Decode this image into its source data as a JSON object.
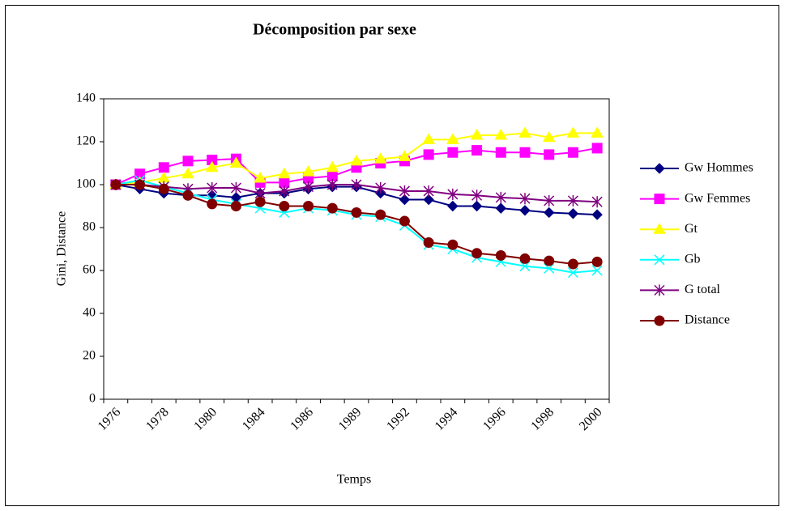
{
  "chart_data": {
    "type": "line",
    "title": "Décomposition par sexe",
    "x_label": "Temps",
    "y_label": "Gini, Distance",
    "categories": [
      "1976",
      null,
      "1978",
      null,
      "1980",
      null,
      "1984",
      null,
      "1986",
      null,
      "1989",
      null,
      "1992",
      null,
      "1994",
      null,
      "1996",
      null,
      "1998",
      null,
      "2000"
    ],
    "ylim": [
      0,
      140
    ],
    "yticks": [
      0,
      20,
      40,
      60,
      80,
      100,
      120,
      140
    ],
    "legend": "right",
    "series": [
      {
        "name": "Gw Hommes",
        "color": "#000080",
        "marker": "diamond",
        "values": [
          100,
          98,
          96,
          95,
          95,
          94,
          96,
          96,
          98,
          99,
          99,
          96,
          93,
          93,
          90,
          90,
          89,
          88,
          87,
          86.5,
          86
        ]
      },
      {
        "name": "Gw Femmes",
        "color": "#ff00ff",
        "marker": "square",
        "values": [
          100,
          105,
          108,
          111,
          111.5,
          112,
          101,
          101,
          103,
          104,
          108,
          110,
          111,
          114,
          115,
          116,
          115,
          115,
          114,
          115,
          117
        ]
      },
      {
        "name": "Gt",
        "color": "#ffff00",
        "marker": "triangle",
        "values": [
          100,
          101,
          103,
          105,
          108,
          110,
          103,
          105,
          106,
          108,
          111,
          112,
          113,
          121,
          121,
          123,
          123,
          124,
          122,
          124,
          124
        ]
      },
      {
        "name": "Gb",
        "color": "#00ffff",
        "marker": "x",
        "values": [
          100,
          102,
          99,
          96,
          93,
          91,
          89,
          87,
          89,
          88,
          86,
          85,
          81,
          72,
          70,
          66,
          64,
          62,
          61,
          59,
          60
        ]
      },
      {
        "name": "G total",
        "color": "#800080",
        "marker": "star",
        "values": [
          100,
          100,
          99,
          98,
          98.5,
          98.5,
          96,
          97,
          99,
          100,
          100,
          98.5,
          97,
          97,
          95.5,
          95,
          94,
          93.5,
          92.5,
          92.5,
          92
        ]
      },
      {
        "name": "Distance",
        "color": "#800000",
        "marker": "circle",
        "values": [
          100,
          100,
          98,
          95,
          91,
          90,
          92,
          90,
          90,
          89,
          87,
          86,
          83,
          73,
          72,
          68,
          67,
          65.5,
          64.5,
          63,
          64
        ]
      }
    ]
  }
}
